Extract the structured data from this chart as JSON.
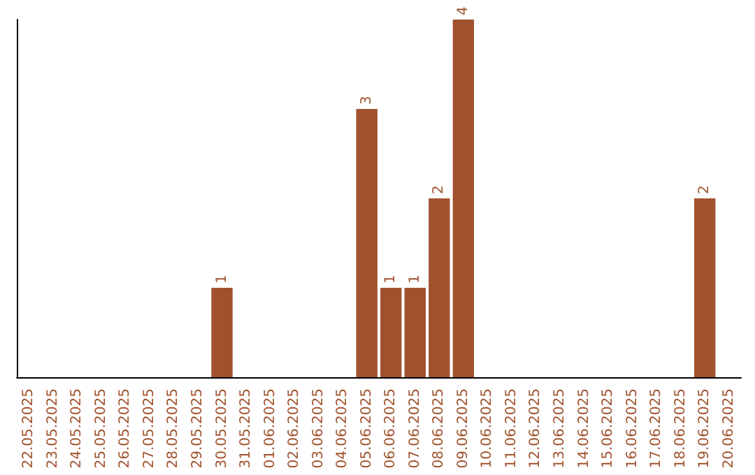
{
  "chart_data": {
    "type": "bar",
    "categories": [
      "22.05.2025",
      "23.05.2025",
      "24.05.2025",
      "25.05.2025",
      "26.05.2025",
      "27.05.2025",
      "28.05.2025",
      "29.05.2025",
      "30.05.2025",
      "31.05.2025",
      "01.06.2025",
      "02.06.2025",
      "03.06.2025",
      "04.06.2025",
      "05.06.2025",
      "06.06.2025",
      "07.06.2025",
      "08.06.2025",
      "09.06.2025",
      "10.06.2025",
      "11.06.2025",
      "12.06.2025",
      "13.06.2025",
      "14.06.2025",
      "15.06.2025",
      "16.06.2025",
      "17.06.2025",
      "18.06.2025",
      "19.06.2025",
      "20.06.2025"
    ],
    "values": [
      0,
      0,
      0,
      0,
      0,
      0,
      0,
      0,
      1,
      0,
      0,
      0,
      0,
      0,
      3,
      1,
      1,
      2,
      4,
      0,
      0,
      0,
      0,
      0,
      0,
      0,
      0,
      0,
      2,
      0
    ],
    "value_labels": [
      null,
      null,
      null,
      null,
      null,
      null,
      null,
      null,
      "1",
      null,
      null,
      null,
      null,
      null,
      "3",
      "1",
      "1",
      "2",
      "4",
      null,
      null,
      null,
      null,
      null,
      null,
      null,
      null,
      null,
      "2",
      null
    ],
    "color": "#a0522d",
    "grid": false
  }
}
